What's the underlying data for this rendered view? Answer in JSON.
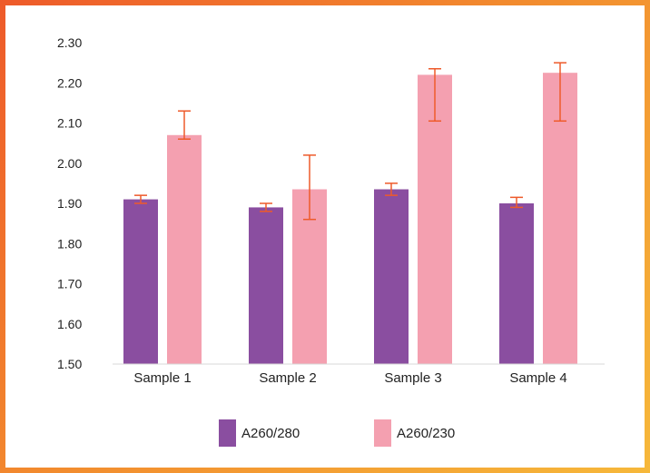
{
  "chart_data": {
    "type": "bar",
    "categories": [
      "Sample 1",
      "Sample 2",
      "Sample 3",
      "Sample 4"
    ],
    "series": [
      {
        "name": "A260/280",
        "color": "#8a4ea0",
        "values": [
          1.91,
          1.89,
          1.935,
          1.9
        ],
        "error_low": [
          1.9,
          1.88,
          1.92,
          1.89
        ],
        "error_high": [
          1.92,
          1.9,
          1.95,
          1.915
        ]
      },
      {
        "name": "A260/230",
        "color": "#f4a0b0",
        "values": [
          2.07,
          1.935,
          2.22,
          2.225
        ],
        "error_low": [
          2.06,
          1.86,
          2.105,
          2.105
        ],
        "error_high": [
          2.13,
          2.02,
          2.235,
          2.25
        ]
      }
    ],
    "error_bar_color": "#ee5a2a",
    "ylim": [
      1.5,
      2.3
    ],
    "yticks": [
      "1.50",
      "1.60",
      "1.70",
      "1.80",
      "1.90",
      "2.00",
      "2.10",
      "2.20",
      "2.30"
    ],
    "grid": false,
    "legend_position": "bottom",
    "title": "",
    "xlabel": "",
    "ylabel": ""
  }
}
